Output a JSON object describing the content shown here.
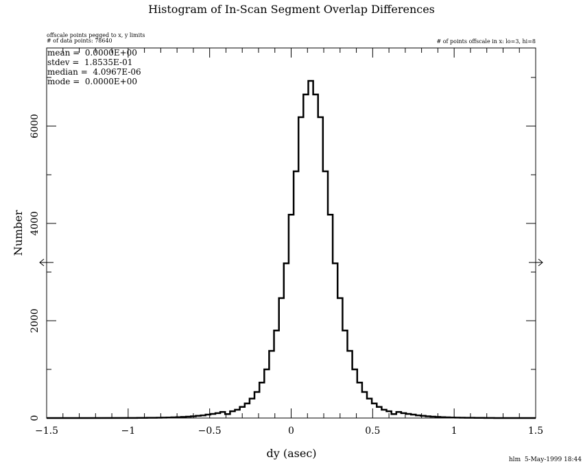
{
  "chart_data": {
    "type": "bar",
    "title": "Histogram of In-Scan Segment Overlap Differences",
    "xlabel": "dy (asec)",
    "ylabel": "Number",
    "xlim": [
      -1.5,
      1.5
    ],
    "ylim": [
      0,
      7000
    ],
    "xticks": [
      "-1.5",
      "-1",
      "-0.5",
      "0",
      "0.5",
      "1",
      "1.5"
    ],
    "xtick_values": [
      -1.5,
      -1,
      -0.5,
      0,
      0.5,
      1,
      1.5
    ],
    "yticks": [
      "0",
      "2000",
      "4000",
      "6000"
    ],
    "ytick_values": [
      0,
      2000,
      4000,
      6000
    ],
    "bin_width": 0.03,
    "bin_centers_from": -0.99,
    "values": [
      2,
      2,
      3,
      4,
      5,
      6,
      7,
      8,
      10,
      14,
      18,
      22,
      28,
      35,
      45,
      55,
      70,
      85,
      100,
      125,
      80,
      140,
      170,
      230,
      300,
      400,
      535,
      730,
      1000,
      1380,
      1800,
      2465,
      3180,
      4180,
      5070,
      6183,
      6650,
      6930,
      6650,
      6183,
      5070,
      4180,
      3180,
      2465,
      1800,
      1380,
      1000,
      730,
      535,
      400,
      300,
      230,
      170,
      140,
      80,
      125,
      100,
      85,
      70,
      55,
      45,
      35,
      28,
      22,
      18,
      14,
      10,
      8,
      7,
      6,
      5,
      4,
      3,
      2,
      2
    ],
    "annotations": {
      "offscale_note": "offscale points pegged to x, y limits",
      "n_points": "# of data points: 78640",
      "offscale_count": "# of points offscale in x: lo=3, hi=8",
      "stats": [
        "mean =  0.0000E+00",
        "stdev =  1.8535E-01",
        "median =  4.0967E-06",
        "mode =  0.0000E+00"
      ],
      "footer": "hlm  5-May-1999 18:44"
    }
  }
}
